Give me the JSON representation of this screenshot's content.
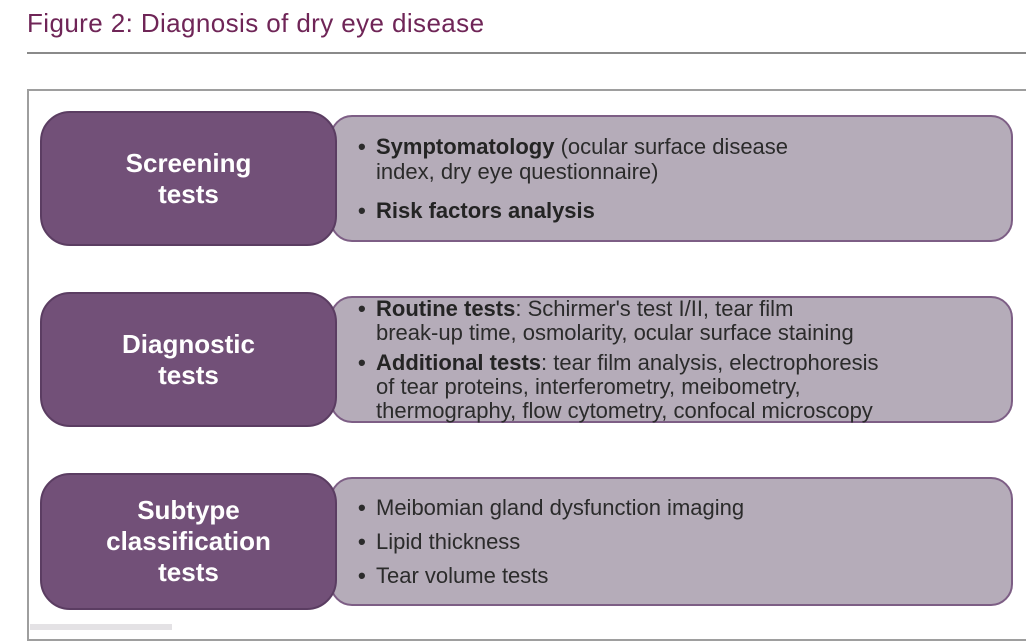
{
  "title": "Figure 2: Diagnosis of dry eye disease",
  "colors": {
    "title_text": "#6f2557",
    "label_box_fill": "#725078",
    "label_box_border": "#5b3d62",
    "content_box_fill": "#b5acb9",
    "content_box_border": "#7d5e85",
    "body_text": "#2b2b2b",
    "container_border": "#9e9e9e",
    "title_underline": "#8a8a8a"
  },
  "rows": [
    {
      "label": "Screening tests",
      "label_lines": [
        "Screening",
        "tests"
      ],
      "items": [
        {
          "bullet": "•",
          "lines": [
            {
              "bold": "Symptomatology",
              "text": " (ocular surface disease"
            },
            {
              "bold": "",
              "text": "index, dry eye questionnaire)"
            }
          ]
        },
        {
          "bullet": "•",
          "lines": [
            {
              "bold": "Risk factors analysis",
              "text": ""
            }
          ]
        }
      ]
    },
    {
      "label": "Diagnostic tests",
      "label_lines": [
        "Diagnostic",
        "tests"
      ],
      "items": [
        {
          "bullet": "•",
          "lines": [
            {
              "bold": "Routine tests",
              "text": ": Schirmer's test I/II, tear film"
            },
            {
              "bold": "",
              "text": "break-up time, osmolarity, ocular surface staining"
            }
          ]
        },
        {
          "bullet": "•",
          "lines": [
            {
              "bold": "Additional tests",
              "text": ": tear film analysis, electrophoresis"
            },
            {
              "bold": "",
              "text": "of tear proteins, interferometry, meibometry,"
            },
            {
              "bold": "",
              "text": "thermography, flow cytometry, confocal microscopy"
            }
          ]
        }
      ]
    },
    {
      "label": "Subtype classification tests",
      "label_lines": [
        "Subtype",
        "classification",
        "tests"
      ],
      "items": [
        {
          "bullet": "•",
          "lines": [
            {
              "bold": "",
              "text": "Meibomian gland dysfunction imaging"
            }
          ]
        },
        {
          "bullet": "•",
          "lines": [
            {
              "bold": "",
              "text": "Lipid thickness"
            }
          ]
        },
        {
          "bullet": "•",
          "lines": [
            {
              "bold": "",
              "text": "Tear volume tests"
            }
          ]
        }
      ]
    }
  ]
}
